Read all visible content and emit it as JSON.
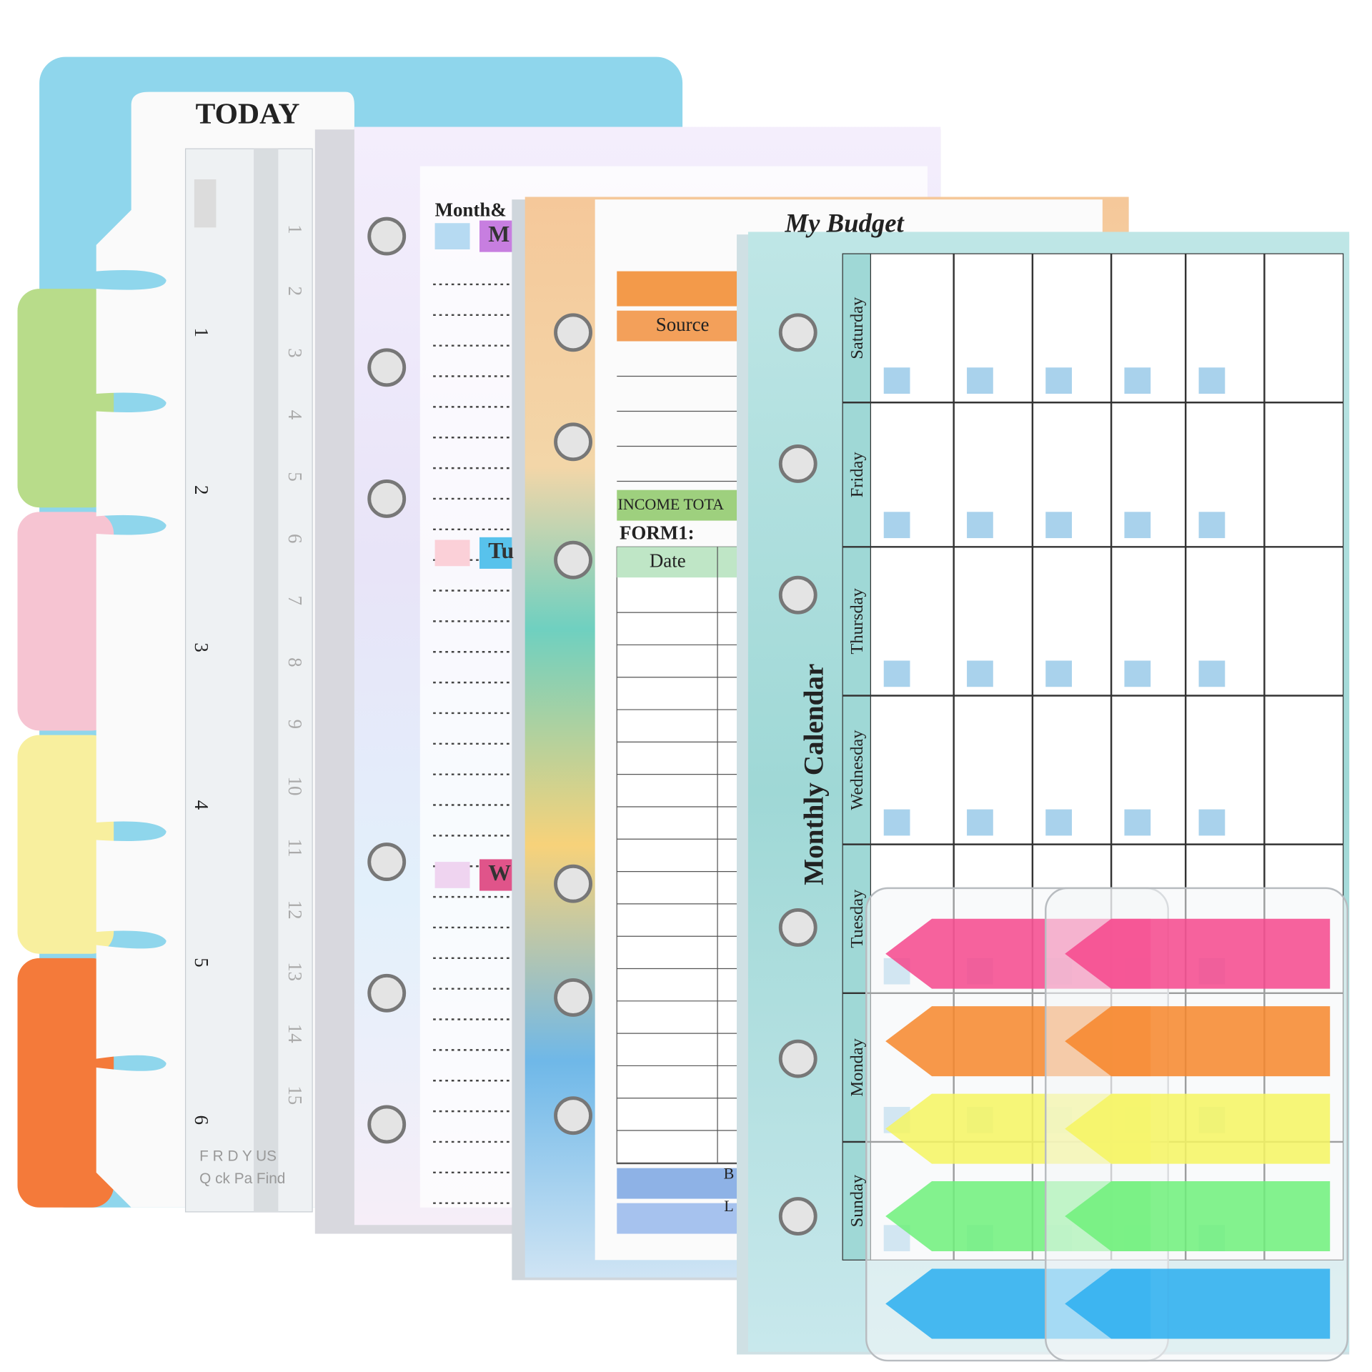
{
  "divider": {
    "tab_label": "TODAY",
    "footer": [
      "F R D Y US",
      "Q ck Pa Find"
    ]
  },
  "ruler": {
    "inch_marks": [
      "1",
      "2",
      "3",
      "4",
      "5",
      "6"
    ],
    "cm_marks": [
      "1",
      "2",
      "3",
      "4",
      "5",
      "6",
      "7",
      "8",
      "9",
      "10",
      "11",
      "12",
      "13",
      "14",
      "15"
    ]
  },
  "weekly_page": {
    "heading": "Month&",
    "days": [
      "M",
      "Tu",
      "W"
    ]
  },
  "budget_page": {
    "title": "My Budget",
    "income_header": "Source",
    "income_total": "INCOME TOTA",
    "form_label": "FORM1:",
    "date_header": "Date",
    "footer_rows": [
      "B",
      "L"
    ]
  },
  "calendar_page": {
    "title": "Monthly Calendar",
    "days": [
      "Saturday",
      "Friday",
      "Thursday",
      "Wednesday",
      "Tuesday",
      "Monday",
      "Sunday"
    ]
  }
}
